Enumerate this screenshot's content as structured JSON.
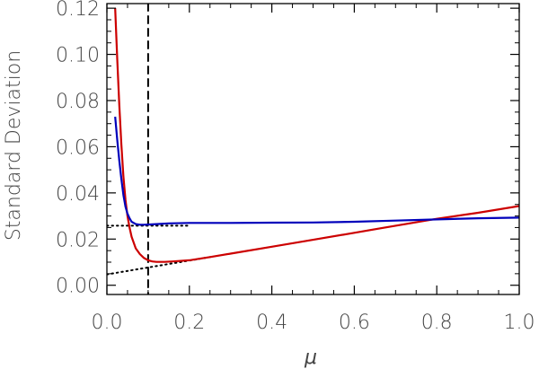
{
  "chart_data": {
    "type": "line",
    "xlabel": "μ",
    "ylabel": "Standard Deviation",
    "xlim": [
      0.0,
      1.0
    ],
    "ylim": [
      -0.004,
      0.122
    ],
    "x_ticks": [
      "0.0",
      "0.2",
      "0.4",
      "0.6",
      "0.8",
      "1.0"
    ],
    "x_tick_values": [
      0.0,
      0.2,
      0.4,
      0.6,
      0.8,
      1.0
    ],
    "y_ticks": [
      "0.00",
      "0.02",
      "0.04",
      "0.06",
      "0.08",
      "0.10",
      "0.12"
    ],
    "y_tick_values": [
      0.0,
      0.02,
      0.04,
      0.06,
      0.08,
      0.1,
      0.12
    ],
    "grid": false,
    "legend": "none",
    "series": [
      {
        "color": "#cc0000",
        "style": "solid",
        "x": [
          0.02,
          0.025,
          0.03,
          0.035,
          0.04,
          0.045,
          0.05,
          0.055,
          0.06,
          0.07,
          0.08,
          0.09,
          0.1,
          0.11,
          0.12,
          0.14,
          0.16,
          0.2,
          0.25,
          0.3,
          0.4,
          0.5,
          0.6,
          0.7,
          0.8,
          0.9,
          1.0
        ],
        "y": [
          0.12,
          0.098,
          0.078,
          0.061,
          0.047,
          0.037,
          0.03,
          0.025,
          0.021,
          0.016,
          0.0135,
          0.0118,
          0.0108,
          0.0103,
          0.0101,
          0.0101,
          0.0103,
          0.0108,
          0.0122,
          0.0137,
          0.0167,
          0.0197,
          0.0227,
          0.0258,
          0.0288,
          0.0314,
          0.0343
        ]
      },
      {
        "color": "#0000bb",
        "style": "solid",
        "x": [
          0.02,
          0.025,
          0.03,
          0.035,
          0.04,
          0.045,
          0.05,
          0.055,
          0.06,
          0.07,
          0.08,
          0.09,
          0.1,
          0.12,
          0.15,
          0.2,
          0.3,
          0.4,
          0.5,
          0.6,
          0.7,
          0.8,
          0.9,
          1.0
        ],
        "y": [
          0.073,
          0.063,
          0.054,
          0.046,
          0.039,
          0.034,
          0.031,
          0.029,
          0.0275,
          0.0265,
          0.0262,
          0.0262,
          0.0263,
          0.0265,
          0.0268,
          0.027,
          0.027,
          0.0271,
          0.0272,
          0.0275,
          0.028,
          0.0285,
          0.029,
          0.0293
        ]
      }
    ],
    "reference_lines": [
      {
        "orientation": "vertical",
        "x": 0.1,
        "style": "dashed",
        "color": "#000000"
      },
      {
        "orientation": "horizontal",
        "y": 0.0258,
        "x_range": [
          0.0,
          0.2
        ],
        "style": "dotted",
        "color": "#000000"
      },
      {
        "orientation": "sloped",
        "x": [
          0.0,
          0.25
        ],
        "y": [
          0.0047,
          0.0122
        ],
        "style": "dotted",
        "color": "#000000"
      }
    ]
  }
}
